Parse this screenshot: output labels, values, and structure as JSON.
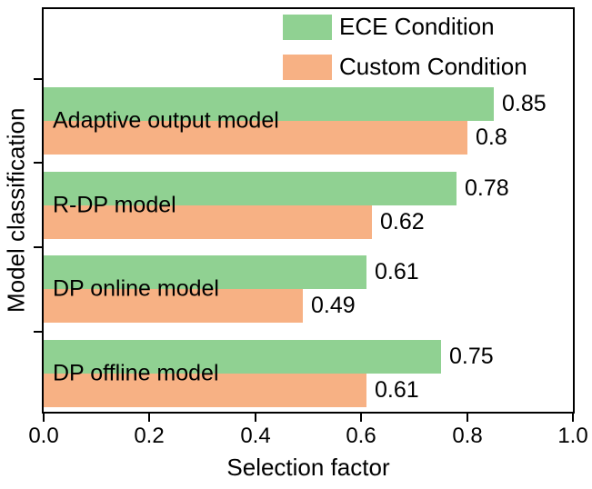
{
  "chart_data": {
    "type": "bar",
    "orientation": "horizontal",
    "title": "",
    "xlabel": "Selection factor",
    "ylabel": "Model classification",
    "xlim": [
      0.0,
      1.0
    ],
    "xticks": [
      "0.0",
      "0.2",
      "0.4",
      "0.6",
      "0.8",
      "1.0"
    ],
    "grid": false,
    "legend_position": "top-inside",
    "categories": [
      "Adaptive output model",
      "R-DP model",
      "DP online model",
      "DP offline model"
    ],
    "series": [
      {
        "name": "ECE Condition",
        "color": "#90d192",
        "values": [
          0.85,
          0.78,
          0.61,
          0.75
        ],
        "labels": [
          "0.85",
          "0.78",
          "0.61",
          "0.75"
        ]
      },
      {
        "name": "Custom Condition",
        "color": "#f7b184",
        "values": [
          0.8,
          0.62,
          0.49,
          0.61
        ],
        "labels": [
          "0.8",
          "0.62",
          "0.49",
          "0.61"
        ]
      }
    ]
  }
}
